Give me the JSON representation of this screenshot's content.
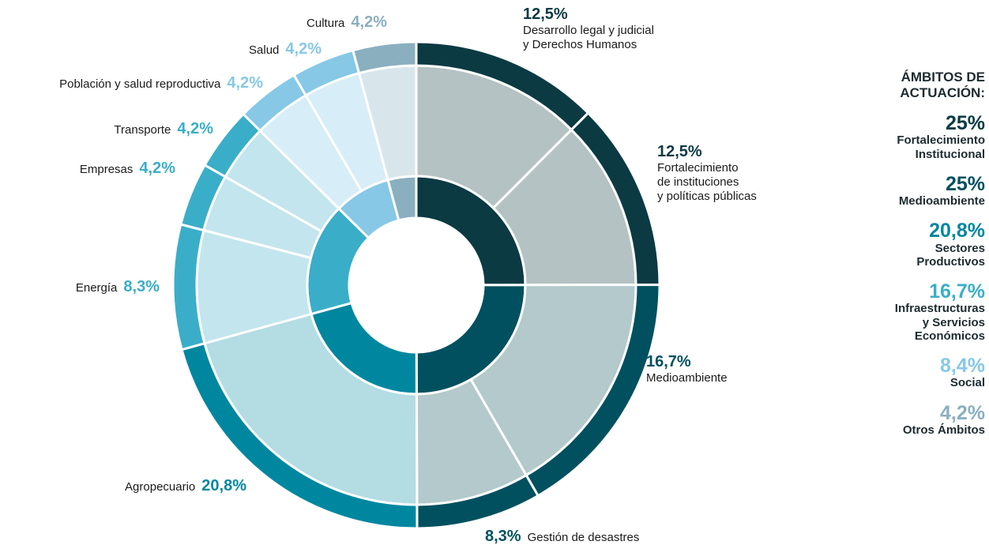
{
  "chart_data": {
    "type": "sunburst",
    "legend_title": "ÁMBITOS DE\nACTUACIÓN:",
    "groups": [
      {
        "name": "Fortalecimiento\nInstitucional",
        "value": 25,
        "value_label": "25%",
        "color": "#0b3a42",
        "children": [
          {
            "name": "Desarrollo legal y judicial\ny Derechos Humanos",
            "value": 12.5,
            "value_label": "12,5%",
            "color": "#b5c2c3"
          },
          {
            "name": "Fortalecimiento\nde instituciones\ny políticas públicas",
            "value": 12.5,
            "value_label": "12,5%",
            "color": "#b5c2c3"
          }
        ]
      },
      {
        "name": "Medioambiente",
        "value": 25,
        "value_label": "25%",
        "color": "#00505f",
        "children": [
          {
            "name": "Medioambiente",
            "value": 16.7,
            "value_label": "16,7%",
            "color": "#b3c9cc"
          },
          {
            "name": "Gestión de desastres",
            "value": 8.3,
            "value_label": "8,3%",
            "color": "#b3c9cc"
          }
        ]
      },
      {
        "name": "Sectores\nProductivos",
        "value": 20.8,
        "value_label": "20,8%",
        "color": "#0087a0",
        "children": [
          {
            "name": "Agropecuario",
            "value": 20.8,
            "value_label": "20,8%",
            "color": "#b3dce3"
          }
        ]
      },
      {
        "name": "Infraestructuras\ny Servicios\nEconómicos",
        "value": 16.7,
        "value_label": "16,7%",
        "color": "#3aaec8",
        "children": [
          {
            "name": "Energía",
            "value": 8.3,
            "value_label": "8,3%",
            "color": "#c3e5ee"
          },
          {
            "name": "Empresas",
            "value": 4.2,
            "value_label": "4,2%",
            "color": "#c3e5ee"
          },
          {
            "name": "Transporte",
            "value": 4.2,
            "value_label": "4,2%",
            "color": "#c3e5ee"
          }
        ]
      },
      {
        "name": "Social",
        "value": 8.4,
        "value_label": "8,4%",
        "color": "#86c8e6",
        "children": [
          {
            "name": "Población y salud reproductiva",
            "value": 4.2,
            "value_label": "4,2%",
            "color": "#d7edf7"
          },
          {
            "name": "Salud",
            "value": 4.2,
            "value_label": "4,2%",
            "color": "#d7edf7"
          }
        ]
      },
      {
        "name": "Otros Ámbitos",
        "value": 4.2,
        "value_label": "4,2%",
        "color": "#8aafbf",
        "children": [
          {
            "name": "Cultura",
            "value": 4.2,
            "value_label": "4,2%",
            "color": "#d8e6ec"
          }
        ]
      }
    ]
  }
}
